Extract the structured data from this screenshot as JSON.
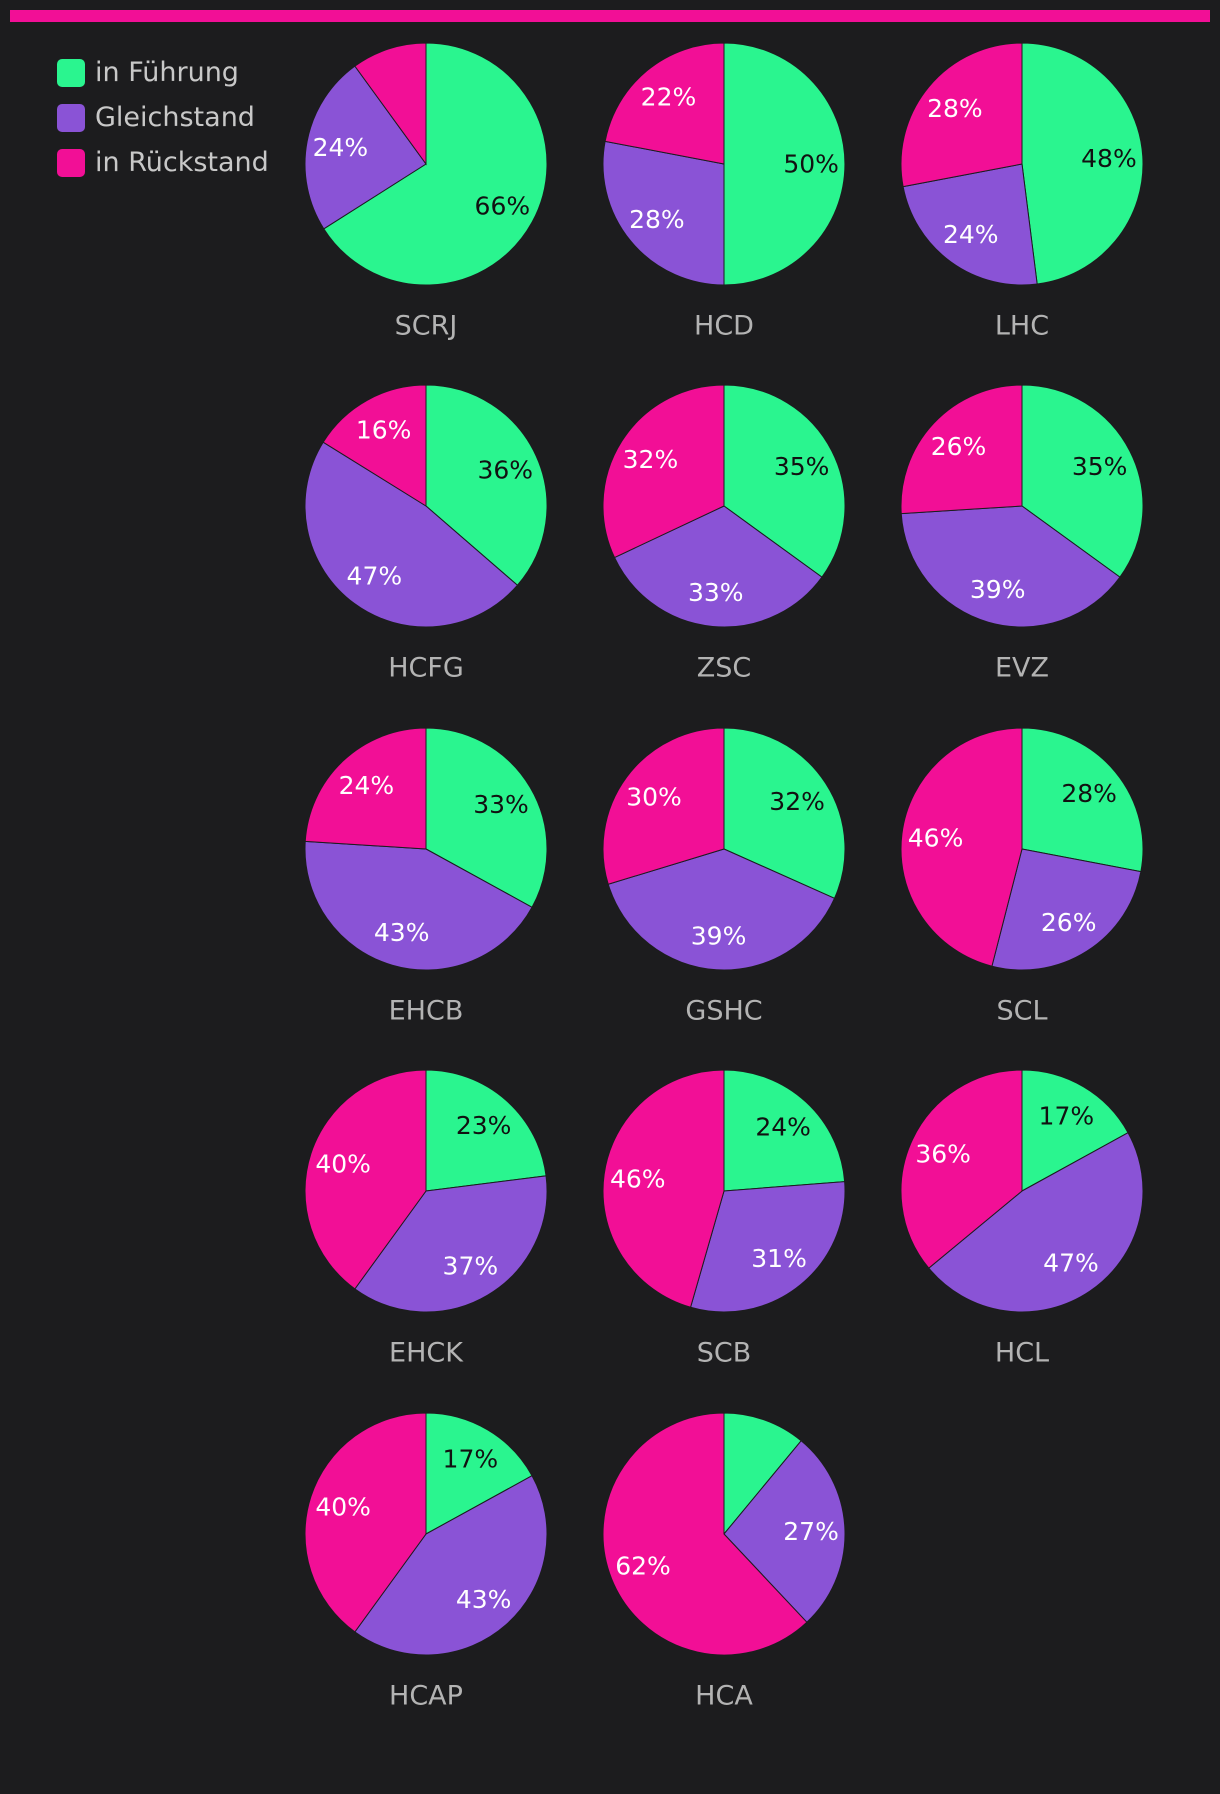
{
  "colors": {
    "background": "#1c1c1e",
    "accent_bar": "#f20f96",
    "leading": "#2af58f",
    "tied": "#8a53d6",
    "trailing": "#f20f96",
    "team_label": "#b3b3b3",
    "text_dark": "#111111",
    "text_light": "#ffffff"
  },
  "legend": [
    {
      "label": "in Führung",
      "color": "#2af58f"
    },
    {
      "label": "Gleichstand",
      "color": "#8a53d6"
    },
    {
      "label": "in Rückstand",
      "color": "#f20f96"
    }
  ],
  "chart_data": {
    "type": "pie",
    "series_names": [
      "in Führung",
      "Gleichstand",
      "in Rückstand"
    ],
    "series_colors": [
      "#2af58f",
      "#8a53d6",
      "#f20f96"
    ],
    "charts": [
      {
        "team": "SCRJ",
        "values": [
          66,
          24,
          10
        ],
        "labels": [
          "66%",
          "24%",
          ""
        ]
      },
      {
        "team": "HCD",
        "values": [
          50,
          28,
          22
        ],
        "labels": [
          "50%",
          "28%",
          "22%"
        ]
      },
      {
        "team": "LHC",
        "values": [
          48,
          24,
          28
        ],
        "labels": [
          "48%",
          "24%",
          "28%"
        ]
      },
      {
        "team": "HCFG",
        "values": [
          36,
          47,
          16
        ],
        "labels": [
          "36%",
          "47%",
          "16%"
        ]
      },
      {
        "team": "ZSC",
        "values": [
          35,
          33,
          32
        ],
        "labels": [
          "35%",
          "33%",
          "32%"
        ]
      },
      {
        "team": "EVZ",
        "values": [
          35,
          39,
          26
        ],
        "labels": [
          "35%",
          "39%",
          "26%"
        ]
      },
      {
        "team": "EHCB",
        "values": [
          33,
          43,
          24
        ],
        "labels": [
          "33%",
          "43%",
          "24%"
        ]
      },
      {
        "team": "GSHC",
        "values": [
          32,
          39,
          30
        ],
        "labels": [
          "32%",
          "39%",
          "30%"
        ]
      },
      {
        "team": "SCL",
        "values": [
          28,
          26,
          46
        ],
        "labels": [
          "28%",
          "26%",
          "46%"
        ]
      },
      {
        "team": "EHCK",
        "values": [
          23,
          37,
          40
        ],
        "labels": [
          "23%",
          "37%",
          "40%"
        ]
      },
      {
        "team": "SCB",
        "values": [
          24,
          31,
          46
        ],
        "labels": [
          "24%",
          "31%",
          "46%"
        ]
      },
      {
        "team": "HCL",
        "values": [
          17,
          47,
          36
        ],
        "labels": [
          "17%",
          "47%",
          "36%"
        ]
      },
      {
        "team": "HCAP",
        "values": [
          17,
          43,
          40
        ],
        "labels": [
          "17%",
          "43%",
          "40%"
        ]
      },
      {
        "team": "HCA",
        "values": [
          11,
          27,
          62
        ],
        "labels": [
          "",
          "27%",
          "62%"
        ]
      }
    ]
  }
}
